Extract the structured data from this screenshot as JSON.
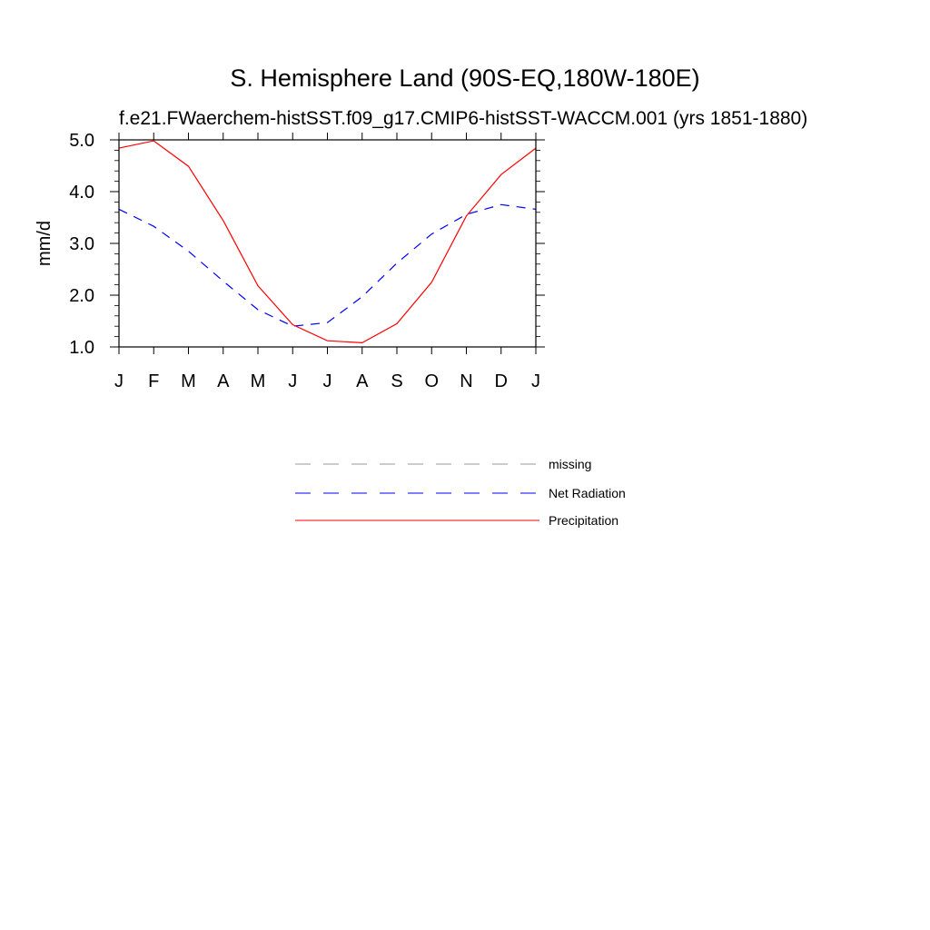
{
  "chart_data": {
    "type": "line",
    "title": "S. Hemisphere Land (90S-EQ,180W-180E)",
    "subtitle": "f.e21.FWaerchem-histSST.f09_g17.CMIP6-histSST-WACCM.001 (yrs 1851-1880)",
    "xlabel": "",
    "ylabel": "mm/d",
    "categories": [
      "J",
      "F",
      "M",
      "A",
      "M",
      "J",
      "J",
      "A",
      "S",
      "O",
      "N",
      "D",
      "J"
    ],
    "yticks": [
      "1.0",
      "2.0",
      "3.0",
      "4.0",
      "5.0"
    ],
    "ylim": [
      1.0,
      5.0
    ],
    "grid": false,
    "legend_position": "below",
    "series": [
      {
        "name": "Net Radiation",
        "color": "#0000ff",
        "dash": "dashed",
        "values": [
          3.66,
          3.33,
          2.85,
          2.27,
          1.72,
          1.4,
          1.47,
          1.97,
          2.62,
          3.18,
          3.56,
          3.75,
          3.66
        ]
      },
      {
        "name": "Precipitation",
        "color": "#ff0000",
        "dash": "solid",
        "values": [
          4.84,
          4.98,
          4.49,
          3.44,
          2.18,
          1.43,
          1.12,
          1.08,
          1.45,
          2.25,
          3.53,
          4.33,
          4.84
        ]
      }
    ],
    "legend": [
      {
        "label": "missing",
        "color": "#999999",
        "dash": "dashed"
      },
      {
        "label": "Net Radiation",
        "color": "#0000ff",
        "dash": "dashed"
      },
      {
        "label": "Precipitation",
        "color": "#ff0000",
        "dash": "solid"
      }
    ]
  }
}
